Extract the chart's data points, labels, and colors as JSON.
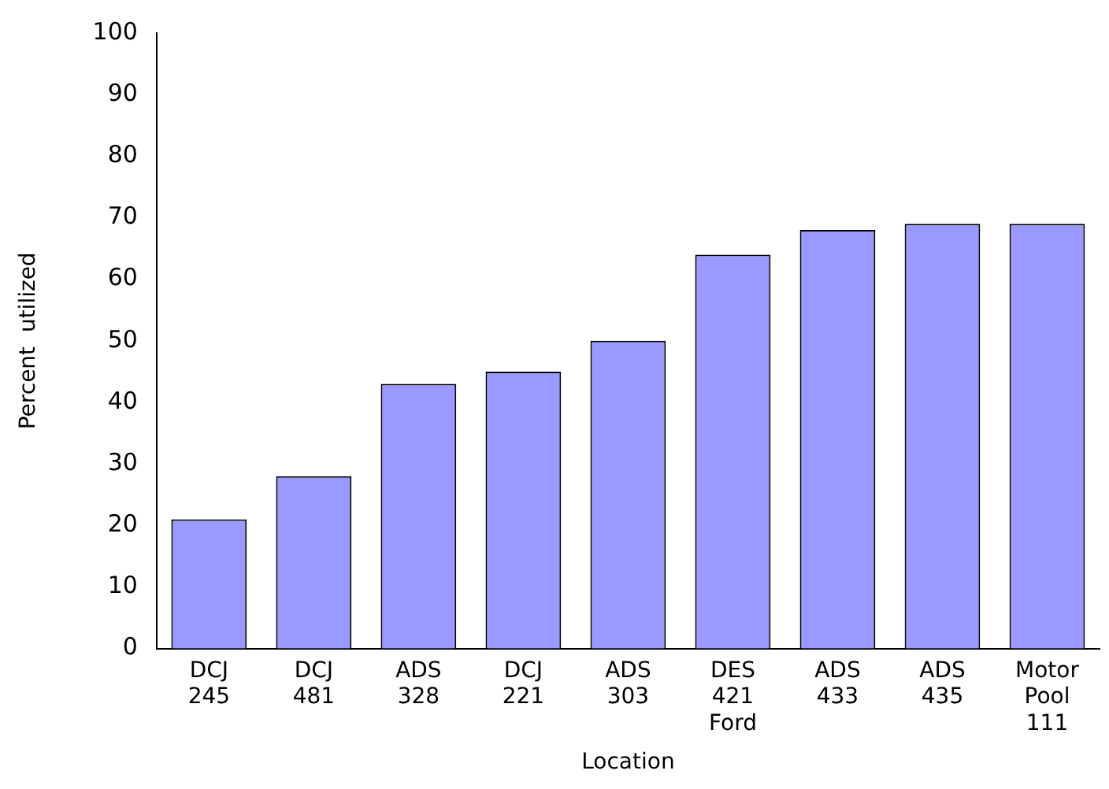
{
  "chart_data": {
    "type": "bar",
    "xlabel": "Location",
    "ylabel": "Percent  utilized",
    "categories": [
      "DCJ 245",
      "DCJ 481",
      "ADS 328",
      "DCJ 221",
      "ADS 303",
      "DES 421 Ford",
      "ADS 433",
      "ADS 435",
      "Motor Pool 111"
    ],
    "values": [
      21,
      28,
      43,
      45,
      50,
      64,
      68,
      69,
      69
    ],
    "color": "#9999ff",
    "ylim": [
      0,
      100
    ],
    "yticks": [
      0,
      10,
      20,
      30,
      40,
      50,
      60,
      70,
      80,
      90,
      100
    ],
    "grid": false,
    "legend": false
  }
}
